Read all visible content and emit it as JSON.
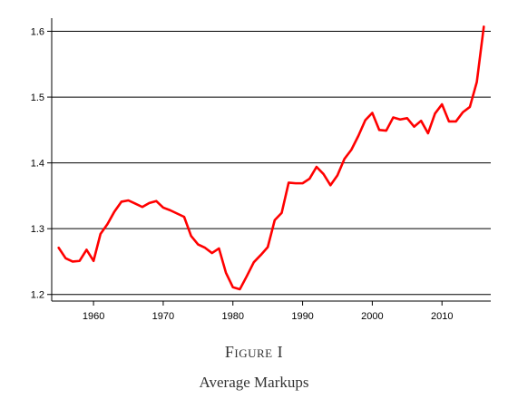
{
  "figure": {
    "label": "Figure I",
    "title": "Average Markups"
  },
  "chart_data": {
    "type": "line",
    "title": "",
    "xlabel": "",
    "ylabel": "",
    "xlim": [
      1954,
      2017
    ],
    "ylim": [
      1.19,
      1.62
    ],
    "x_ticks": [
      1960,
      1970,
      1980,
      1990,
      2000,
      2010
    ],
    "y_ticks": [
      1.2,
      1.3,
      1.4,
      1.5,
      1.6
    ],
    "y_tick_labels": [
      "1.2",
      "1.3",
      "1.4",
      "1.5",
      "1.6"
    ],
    "grid": "horizontal",
    "line_color": "#ff0000",
    "series": [
      {
        "x": [
          1955,
          1956,
          1957,
          1958,
          1959,
          1960,
          1961,
          1962,
          1963,
          1964,
          1965,
          1966,
          1967,
          1968,
          1969,
          1970,
          1971,
          1972,
          1973,
          1974,
          1975,
          1976,
          1977,
          1978,
          1979,
          1980,
          1981,
          1982,
          1983,
          1984,
          1985,
          1986,
          1987,
          1988,
          1989,
          1990,
          1991,
          1992,
          1993,
          1994,
          1995,
          1996,
          1997,
          1998,
          1999,
          2000,
          2001,
          2002,
          2003,
          2004,
          2005,
          2006,
          2007,
          2008,
          2009,
          2010,
          2011,
          2012,
          2013,
          2014,
          2015,
          2016
        ],
        "values": [
          1.271,
          1.255,
          1.25,
          1.251,
          1.268,
          1.251,
          1.292,
          1.307,
          1.326,
          1.341,
          1.343,
          1.338,
          1.333,
          1.339,
          1.342,
          1.332,
          1.328,
          1.323,
          1.318,
          1.289,
          1.276,
          1.271,
          1.263,
          1.27,
          1.233,
          1.211,
          1.208,
          1.228,
          1.249,
          1.26,
          1.272,
          1.313,
          1.324,
          1.37,
          1.369,
          1.369,
          1.376,
          1.394,
          1.383,
          1.366,
          1.381,
          1.406,
          1.42,
          1.441,
          1.465,
          1.476,
          1.45,
          1.449,
          1.469,
          1.466,
          1.468,
          1.455,
          1.464,
          1.445,
          1.475,
          1.489,
          1.463,
          1.463,
          1.477,
          1.485,
          1.523,
          1.607
        ]
      }
    ]
  }
}
